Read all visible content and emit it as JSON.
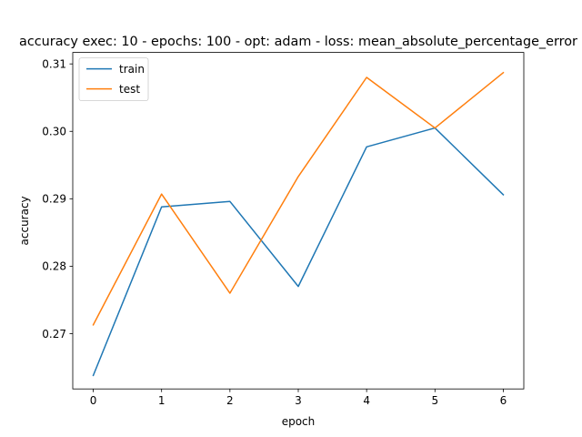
{
  "chart_data": {
    "type": "line",
    "title": "accuracy exec: 10 - epochs: 100 - opt: adam - loss: mean_absolute_percentage_error",
    "xlabel": "epoch",
    "ylabel": "accuracy",
    "x": [
      0,
      1,
      2,
      3,
      4,
      5,
      6
    ],
    "xticks": [
      "0",
      "1",
      "2",
      "3",
      "4",
      "5",
      "6"
    ],
    "yticks": [
      "0.27",
      "0.28",
      "0.29",
      "0.30",
      "0.31"
    ],
    "xlim": [
      -0.3,
      6.3
    ],
    "ylim": [
      0.2618,
      0.3117
    ],
    "grid": false,
    "legend_position": "upper-left",
    "series": [
      {
        "name": "train",
        "color": "#1f77b4",
        "values": [
          0.2638,
          0.2888,
          0.2896,
          0.277,
          0.2977,
          0.3005,
          0.2906
        ]
      },
      {
        "name": "test",
        "color": "#ff7f0e",
        "values": [
          0.2713,
          0.2907,
          0.276,
          0.2933,
          0.308,
          0.3005,
          0.3087
        ]
      }
    ]
  }
}
